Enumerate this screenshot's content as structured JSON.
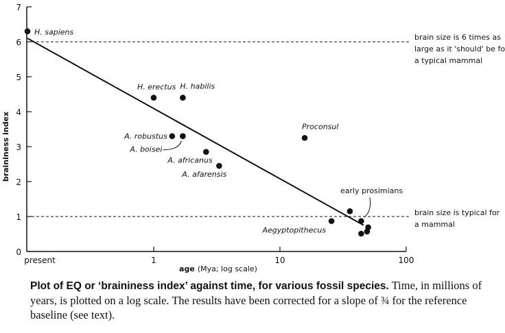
{
  "chart_data": {
    "type": "scatter",
    "xlabel": "age",
    "xlabel_suffix": "(Mya; log scale)",
    "ylabel": "braininess index",
    "x_scale": "log",
    "x_ticks": [
      {
        "value": 0,
        "label": "present"
      },
      {
        "value": 1,
        "label": "1"
      },
      {
        "value": 10,
        "label": "10"
      },
      {
        "value": 100,
        "label": "100"
      }
    ],
    "y_ticks": [
      0,
      1,
      2,
      3,
      4,
      5,
      6,
      7
    ],
    "ylim": [
      0,
      7
    ],
    "grid": false,
    "points": [
      {
        "label": "H. sapiens",
        "x": 0,
        "y": 6.3
      },
      {
        "label": "H. erectus",
        "x": 1.0,
        "y": 4.4
      },
      {
        "label": "H. habilis",
        "x": 1.7,
        "y": 4.4
      },
      {
        "label": "A. robustus",
        "x": 1.4,
        "y": 3.3
      },
      {
        "label": "A. boisei",
        "x": 1.7,
        "y": 3.3
      },
      {
        "label": "A. africanus",
        "x": 2.6,
        "y": 2.85
      },
      {
        "label": "A. afarensis",
        "x": 3.3,
        "y": 2.45
      },
      {
        "label": "Proconsul",
        "x": 15.7,
        "y": 3.25
      },
      {
        "label": "Aegyptopithecus",
        "x": 25.6,
        "y": 0.87
      },
      {
        "label": "",
        "x": 35.8,
        "y": 1.15
      },
      {
        "label": "",
        "x": 44,
        "y": 0.87
      },
      {
        "label": "",
        "x": 50,
        "y": 0.69
      },
      {
        "label": "",
        "x": 49,
        "y": 0.57
      },
      {
        "label": "",
        "x": 44,
        "y": 0.51
      }
    ],
    "group_label": "early prosimians",
    "trend_line": {
      "from": {
        "x": 0,
        "y": 6.1
      },
      "to": {
        "x": 46,
        "y": 0.75
      }
    },
    "reference_lines": [
      {
        "y": 6,
        "style": "dashed",
        "text": [
          "brain size is 6 times as",
          "large as it 'should' be for",
          "a typical mammal"
        ]
      },
      {
        "y": 1,
        "style": "dashed",
        "text": [
          "brain size is typical for",
          "a mammal"
        ]
      }
    ]
  },
  "caption": {
    "bold": "Plot of EQ or ‘braininess index’ against time, for various fossil species.",
    "text": "Time, in millions of years, is plotted on a log scale. The results have been corrected for a slope of ¾ for the reference baseline (see text)."
  }
}
